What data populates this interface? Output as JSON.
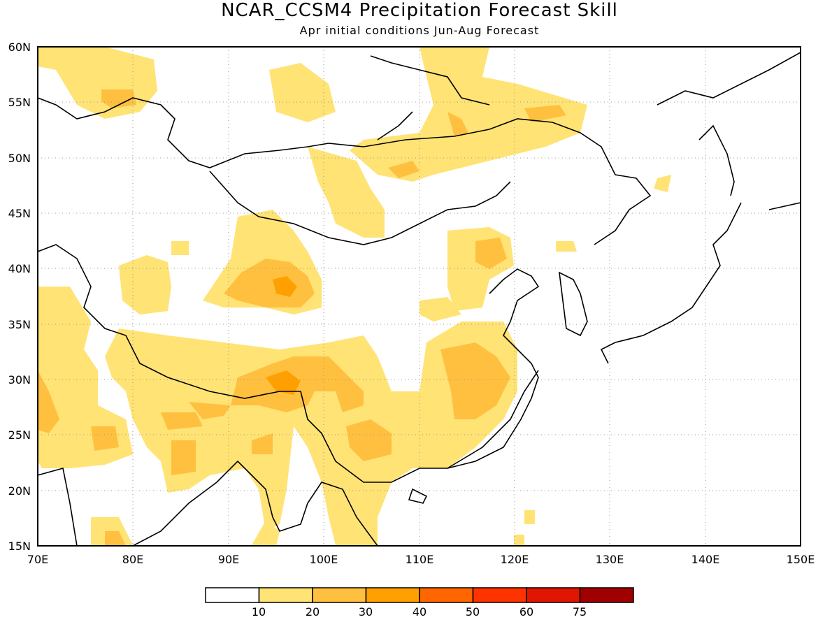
{
  "title": "NCAR_CCSM4 Precipitation Forecast Skill",
  "subtitle": "Apr initial conditions  Jun-Aug Forecast",
  "map": {
    "lon_range": [
      70,
      150
    ],
    "lat_range": [
      15,
      60
    ],
    "grid": true,
    "lon_ticks": [
      "70E",
      "80E",
      "90E",
      "100E",
      "110E",
      "120E",
      "130E",
      "140E",
      "150E"
    ],
    "lat_ticks": [
      "15N",
      "20N",
      "25N",
      "30N",
      "35N",
      "40N",
      "45N",
      "50N",
      "55N",
      "60N"
    ]
  },
  "legend": {
    "labels": [
      "10",
      "20",
      "30",
      "40",
      "50",
      "60",
      "75"
    ],
    "colors": [
      "#ffffff",
      "#ffe375",
      "#ffc040",
      "#ffa000",
      "#ff6600",
      "#ff3300",
      "#e01600",
      "#a00000"
    ]
  }
}
